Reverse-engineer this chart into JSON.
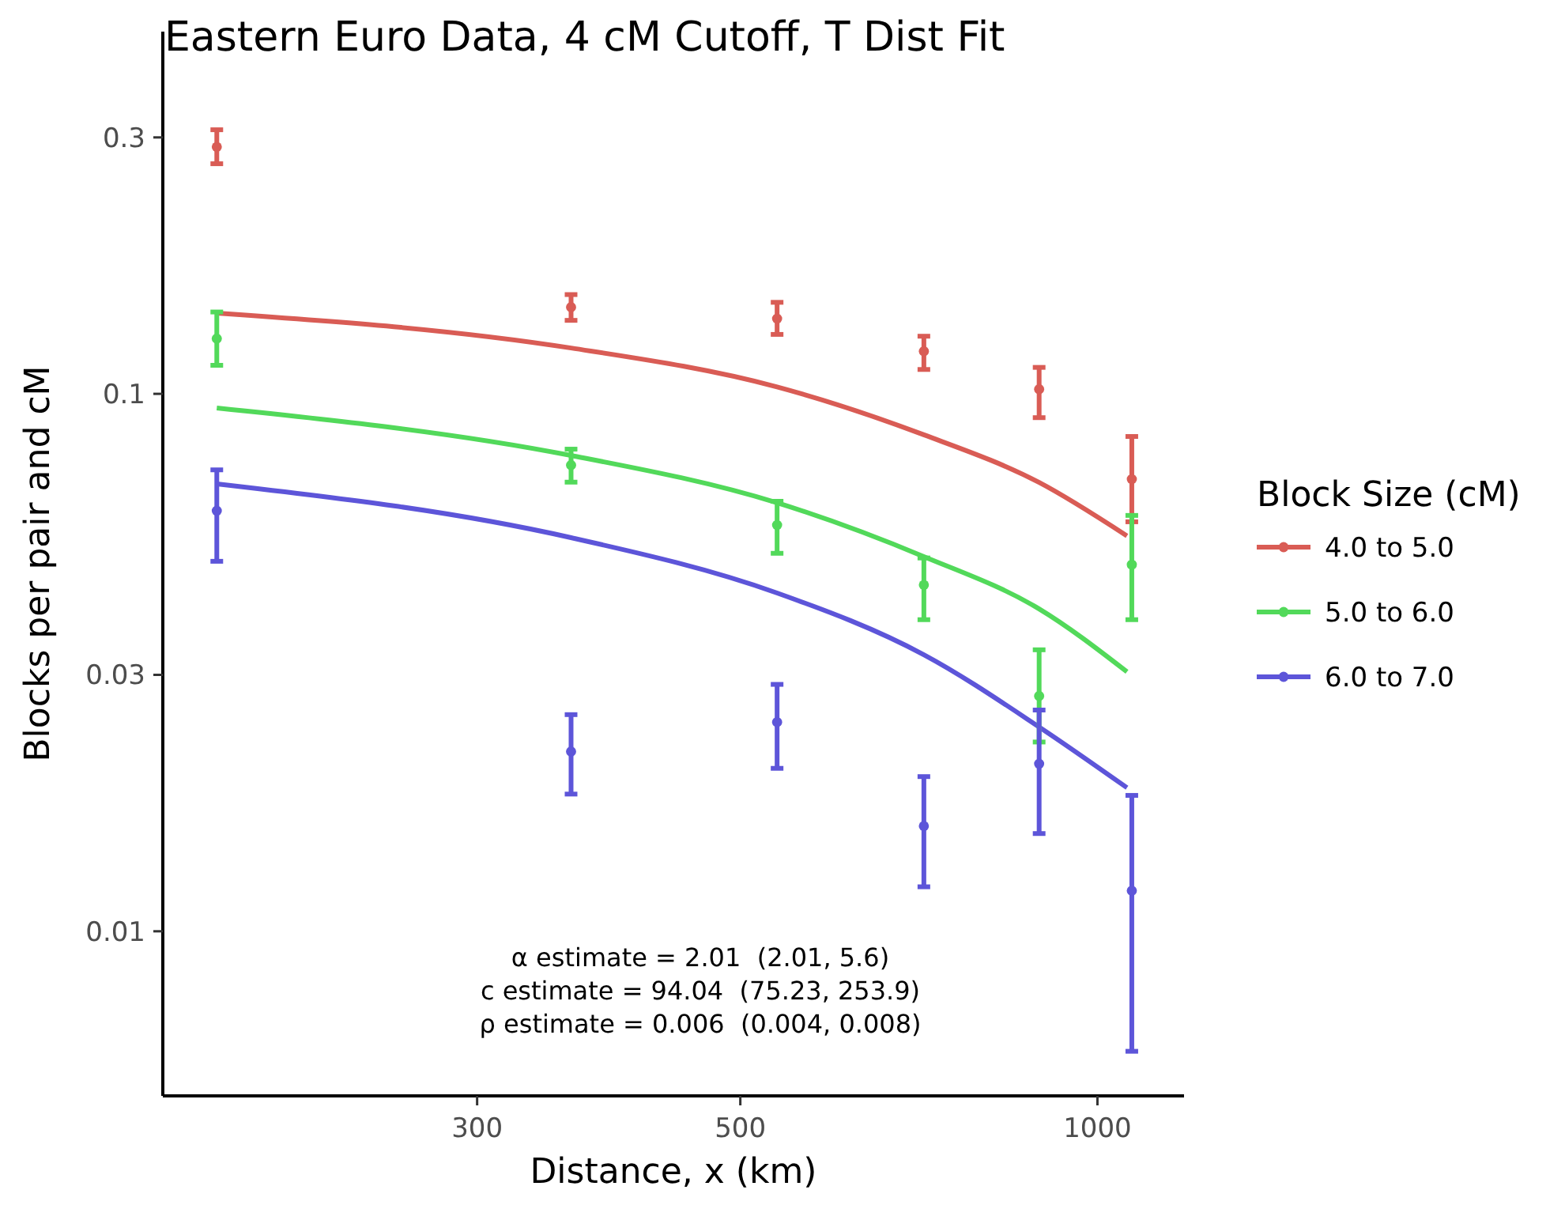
{
  "chart_data": {
    "type": "scatter",
    "title": "Eastern Euro Data, 4 cM Cutoff, T Dist Fit",
    "xlabel": "Distance, x (km)",
    "ylabel": "Blocks per pair and cM",
    "legend_title": "Block Size (cM)",
    "log": "xy",
    "xlim": [
      163,
      1183
    ],
    "ylim": [
      0.00494,
      0.472
    ],
    "xticks": [
      300,
      500,
      1000
    ],
    "yticks": [
      0.01,
      0.03,
      0.1,
      0.3
    ],
    "grid": false,
    "legend": "right",
    "marker": "circle",
    "series": [
      {
        "name": "4.0 to 5.0",
        "color": "#d95c55",
        "x": [
          181,
          360,
          537,
          714,
          893,
          1069
        ],
        "values": [
          0.288,
          0.145,
          0.138,
          0.12,
          0.102,
          0.0694
        ],
        "errors": [
          [
            0.268,
            0.31
          ],
          [
            0.137,
            0.153
          ],
          [
            0.129,
            0.148
          ],
          [
            0.111,
            0.128
          ],
          [
            0.0903,
            0.112
          ],
          [
            0.0578,
            0.0833
          ]
        ]
      },
      {
        "name": "5.0 to 6.0",
        "color": "#52d95a",
        "x": [
          181,
          360,
          537,
          714,
          893,
          1069
        ],
        "values": [
          0.1267,
          0.0737,
          0.057,
          0.0441,
          0.0274,
          0.0481
        ],
        "errors": [
          [
            0.113,
            0.142
          ],
          [
            0.0685,
            0.0789
          ],
          [
            0.0505,
            0.0631
          ],
          [
            0.038,
            0.0495
          ],
          [
            0.0225,
            0.0334
          ],
          [
            0.038,
            0.0594
          ]
        ]
      },
      {
        "name": "6.0 to 7.0",
        "color": "#5d55d9",
        "x": [
          181,
          360,
          537,
          714,
          893,
          1069
        ],
        "values": [
          0.0606,
          0.0216,
          0.0245,
          0.0157,
          0.0205,
          0.0119
        ],
        "errors": [
          [
            0.0488,
            0.0722
          ],
          [
            0.018,
            0.0253
          ],
          [
            0.0201,
            0.0288
          ],
          [
            0.0121,
            0.0194
          ],
          [
            0.0152,
            0.0258
          ],
          [
            0.00598,
            0.0179
          ]
        ]
      },
      {
        "type": "line",
        "color": "#d95c55",
        "marker": "none",
        "x": [
          181,
          360,
          537,
          714,
          893,
          1059
        ],
        "values": [
          0.1413,
          0.1217,
          0.103,
          0.0839,
          0.0684,
          0.0544
        ]
      },
      {
        "type": "line",
        "color": "#52d95a",
        "marker": "none",
        "x": [
          181,
          360,
          537,
          714,
          893,
          1059
        ],
        "values": [
          0.0941,
          0.0768,
          0.0627,
          0.0498,
          0.0398,
          0.0304
        ]
      },
      {
        "type": "line",
        "color": "#5d55d9",
        "marker": "none",
        "x": [
          181,
          360,
          537,
          714,
          893,
          1059
        ],
        "values": [
          0.068,
          0.054,
          0.0426,
          0.0327,
          0.024,
          0.0185
        ]
      }
    ],
    "annotations": [
      "α estimate = 2.01  (2.01, 5.6)",
      "c estimate = 94.04  (75.23, 253.9)",
      "ρ estimate = 0.006  (0.004, 0.008)"
    ]
  }
}
